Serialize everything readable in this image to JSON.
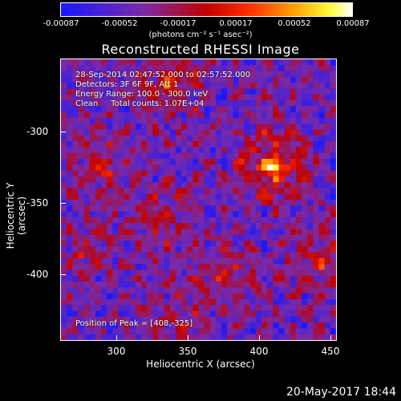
{
  "colorbar": {
    "ticks": [
      "-0.00087",
      "-0.00052",
      "-0.00017",
      "0.00017",
      "0.00052",
      "0.00087"
    ],
    "label": "(photons cm⁻² s⁻¹ asec⁻²)"
  },
  "chart_data": {
    "type": "heatmap",
    "title": "Reconstructed RHESSI Image",
    "xlabel": "Heliocentric X (arcsec)",
    "ylabel": "Heliocentric Y (arcsec)",
    "xlim": [
      260,
      452
    ],
    "ylim": [
      -445,
      -250
    ],
    "x_ticks": [
      "300",
      "350",
      "400",
      "450"
    ],
    "y_ticks": [
      "-300",
      "-350",
      "-400"
    ],
    "color_range": [
      -0.00087,
      0.00087
    ],
    "colormap": "blue-purple-red-yellow-white",
    "peak": [
      408,
      -325
    ],
    "bright_sources": [
      {
        "x": 408,
        "y": -325,
        "value": 0.00087
      },
      {
        "x": 335,
        "y": -265,
        "value": 0.0006
      },
      {
        "x": 290,
        "y": -325,
        "value": 0.0004
      },
      {
        "x": 330,
        "y": -360,
        "value": 0.00035
      },
      {
        "x": 375,
        "y": -400,
        "value": 0.0004
      },
      {
        "x": 440,
        "y": -390,
        "value": 0.00045
      },
      {
        "x": 275,
        "y": -385,
        "value": 0.0003
      },
      {
        "x": 340,
        "y": -430,
        "value": 0.0003
      }
    ]
  },
  "info": {
    "time_range": "28-Sep-2014 02:47:52.000 to 02:57:52.000",
    "detectors": "Detectors: 3F 6F 9F, Att 1",
    "energy": "Energy Range: 100.0 - 300.0 keV",
    "method": "Clean     Total counts: 1.07E+04",
    "peak_label": "Position of Peak = [408,-325]"
  },
  "timestamp": "20-May-2017 18:44"
}
